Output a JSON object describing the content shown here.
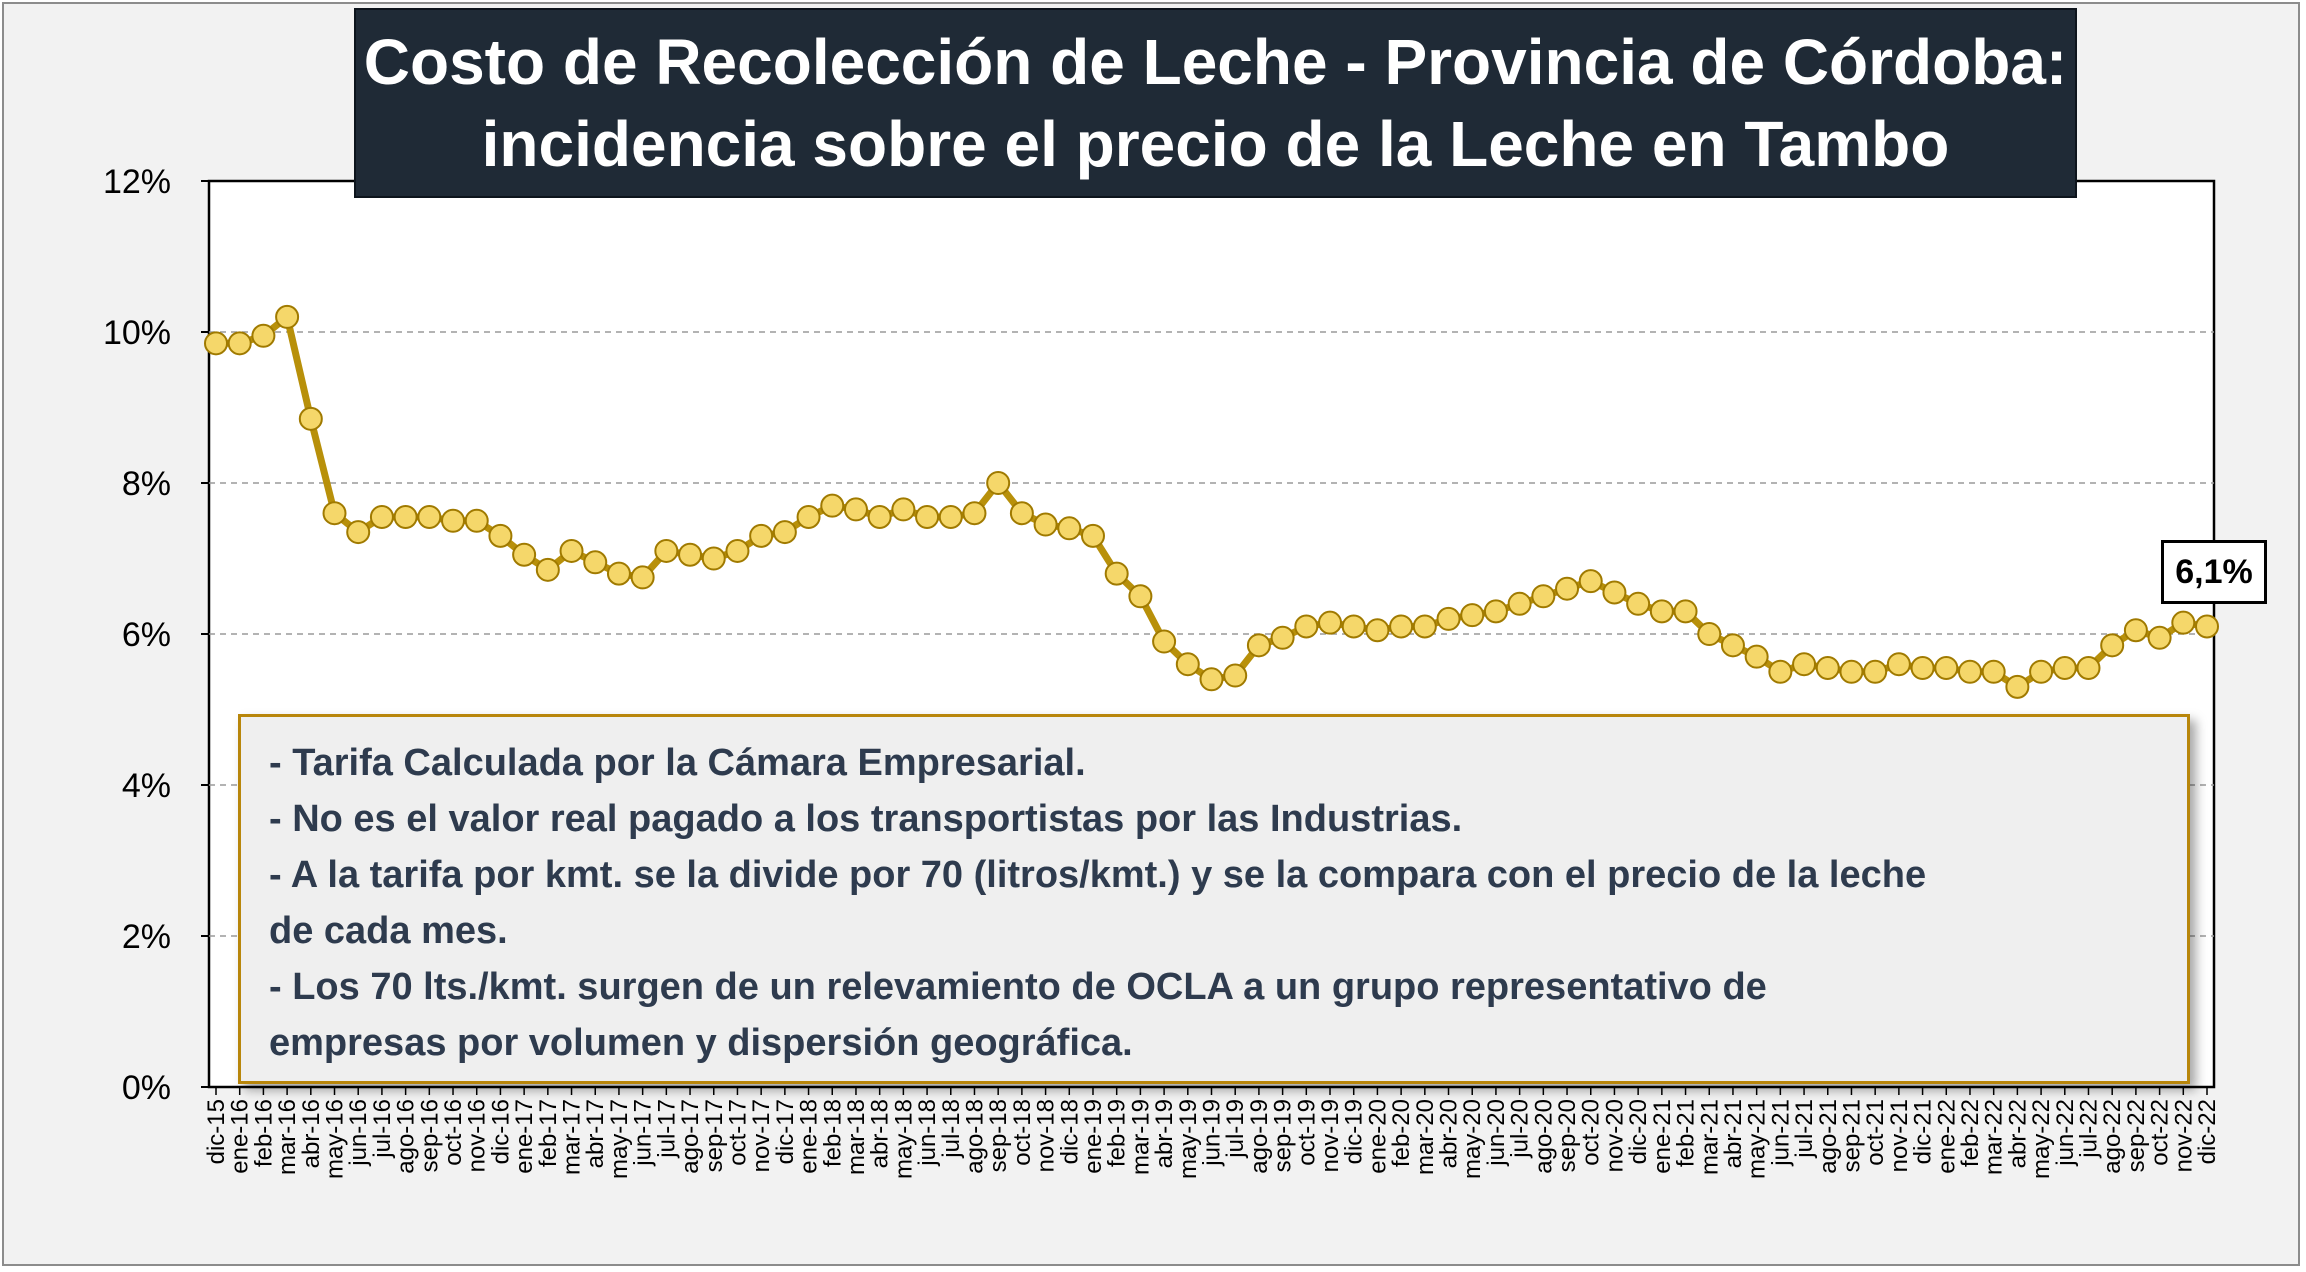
{
  "chart_data": {
    "type": "line",
    "title": [
      "Costo de Recolección de Leche - Provincia de Córdoba:",
      "incidencia sobre el precio de la Leche en Tambo"
    ],
    "xlabel": "",
    "ylabel": "",
    "ylim": [
      0,
      12
    ],
    "y_ticks": [
      "0%",
      "2%",
      "4%",
      "6%",
      "8%",
      "10%",
      "12%"
    ],
    "grid": "horizontal dashed",
    "categories": [
      "dic-15",
      "ene-16",
      "feb-16",
      "mar-16",
      "abr-16",
      "may-16",
      "jun-16",
      "jul-16",
      "ago-16",
      "sep-16",
      "oct-16",
      "nov-16",
      "dic-16",
      "ene-17",
      "feb-17",
      "mar-17",
      "abr-17",
      "may-17",
      "jun-17",
      "jul-17",
      "ago-17",
      "sep-17",
      "oct-17",
      "nov-17",
      "dic-17",
      "ene-18",
      "feb-18",
      "mar-18",
      "abr-18",
      "may-18",
      "jun-18",
      "jul-18",
      "ago-18",
      "sep-18",
      "oct-18",
      "nov-18",
      "dic-18",
      "ene-19",
      "feb-19",
      "mar-19",
      "abr-19",
      "may-19",
      "jun-19",
      "jul-19",
      "ago-19",
      "sep-19",
      "oct-19",
      "nov-19",
      "dic-19",
      "ene-20",
      "feb-20",
      "mar-20",
      "abr-20",
      "may-20",
      "jun-20",
      "jul-20",
      "ago-20",
      "sep-20",
      "oct-20",
      "nov-20",
      "dic-20",
      "ene-21",
      "feb-21",
      "mar-21",
      "abr-21",
      "may-21",
      "jun-21",
      "jul-21",
      "ago-21",
      "sep-21",
      "oct-21",
      "nov-21",
      "dic-21",
      "ene-22",
      "feb-22",
      "mar-22",
      "abr-22",
      "may-22",
      "jun-22",
      "jul-22",
      "ago-22",
      "sep-22",
      "oct-22",
      "nov-22",
      "dic-22"
    ],
    "series": [
      {
        "values": [
          9.85,
          9.85,
          9.95,
          10.2,
          8.85,
          7.6,
          7.35,
          7.55,
          7.55,
          7.55,
          7.5,
          7.5,
          7.3,
          7.05,
          6.85,
          7.1,
          6.95,
          6.8,
          6.75,
          7.1,
          7.05,
          7.0,
          7.1,
          7.3,
          7.35,
          7.55,
          7.7,
          7.65,
          7.55,
          7.65,
          7.55,
          7.55,
          7.6,
          8.0,
          7.6,
          7.45,
          7.4,
          7.3,
          6.8,
          6.5,
          5.9,
          5.6,
          5.4,
          5.45,
          5.85,
          5.95,
          6.1,
          6.15,
          6.1,
          6.05,
          6.1,
          6.1,
          6.2,
          6.25,
          6.3,
          6.4,
          6.5,
          6.6,
          6.7,
          6.55,
          6.4,
          6.3,
          6.3,
          6.0,
          5.85,
          5.7,
          5.5,
          5.6,
          5.55,
          5.5,
          5.5,
          5.6,
          5.55,
          5.55,
          5.5,
          5.5,
          5.3,
          5.5,
          5.55,
          5.55,
          5.85,
          6.05,
          5.95,
          6.15,
          6.1
        ]
      }
    ],
    "colors": {
      "line": "#b8900a",
      "marker_fill": "#f5d76a",
      "marker_stroke": "#a07a00"
    },
    "last_label": "6,1%",
    "note_lines": [
      "- Tarifa Calculada por la Cámara Empresarial.",
      "- No es el valor real pagado a los transportistas por las Industrias.",
      "- A la tarifa por kmt. se la divide por 70 (litros/kmt.) y se la compara con el precio de la leche",
      "de cada mes.",
      "- Los 70 lts./kmt. surgen de un relevamiento de OCLA a un grupo representativo de",
      "empresas por volumen y dispersión geográfica."
    ]
  }
}
